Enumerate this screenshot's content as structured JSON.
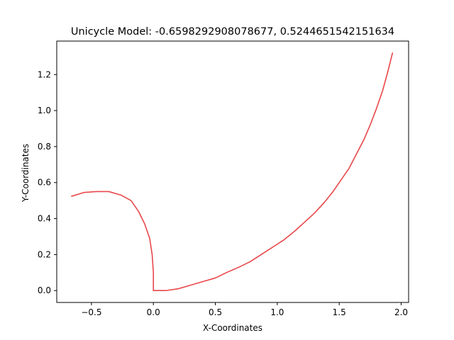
{
  "chart_data": {
    "type": "line",
    "title": "Unicycle Model: -0.6598292908078677, 0.5244651542151634",
    "xlabel": "X-Coordinates",
    "ylabel": "Y-Coordinates",
    "xlim": [
      -0.78,
      2.06
    ],
    "ylim": [
      -0.066,
      1.386
    ],
    "xticks": [
      -0.5,
      0.0,
      0.5,
      1.0,
      1.5,
      2.0
    ],
    "xtick_labels": [
      "−0.5",
      "0.0",
      "0.5",
      "1.0",
      "1.5",
      "2.0"
    ],
    "yticks": [
      0.0,
      0.2,
      0.4,
      0.6,
      0.8,
      1.0,
      1.2
    ],
    "ytick_labels": [
      "0.0",
      "0.2",
      "0.4",
      "0.6",
      "0.8",
      "1.0",
      "1.2"
    ],
    "grid": false,
    "color": "#e8474a",
    "series": [
      {
        "x": [
          1.93,
          1.89,
          1.85,
          1.8,
          1.75,
          1.7,
          1.64,
          1.58,
          1.52,
          1.45,
          1.38,
          1.3,
          1.22,
          1.14,
          1.05,
          0.96,
          0.87,
          0.78,
          0.69,
          0.59,
          0.5,
          0.4,
          0.3,
          0.2,
          0.1,
          0.0,
          0.0,
          -0.01,
          -0.03,
          -0.07,
          -0.12,
          -0.18,
          -0.26,
          -0.36,
          -0.46,
          -0.56,
          -0.66
        ],
        "y": [
          1.32,
          1.21,
          1.11,
          1.01,
          0.92,
          0.84,
          0.76,
          0.68,
          0.62,
          0.55,
          0.49,
          0.43,
          0.38,
          0.33,
          0.28,
          0.24,
          0.2,
          0.16,
          0.13,
          0.1,
          0.07,
          0.05,
          0.03,
          0.01,
          0.0,
          0.0,
          0.1,
          0.2,
          0.29,
          0.37,
          0.44,
          0.5,
          0.53,
          0.55,
          0.55,
          0.545,
          0.524
        ]
      }
    ]
  }
}
